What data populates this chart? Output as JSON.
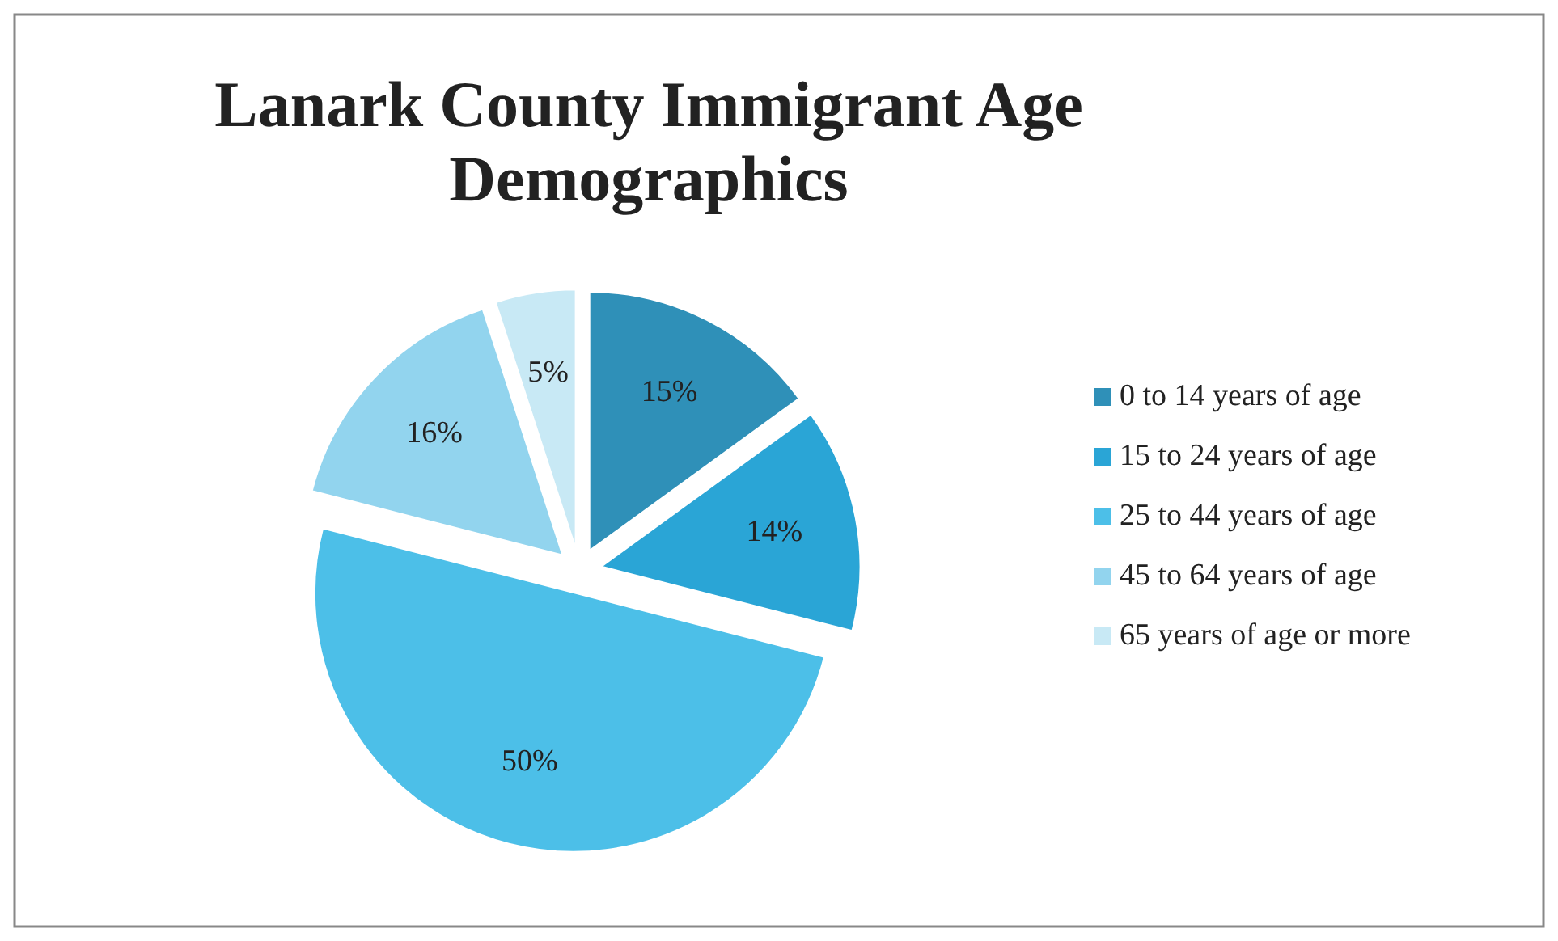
{
  "chart_data": {
    "type": "pie",
    "title": "Lanark County Immigrant Age Demographics",
    "categories": [
      "0 to 14 years of age",
      "15 to 24 years of age",
      "25 to 44 years of age",
      "45 to 64 years of age",
      "65 years of age or more"
    ],
    "values": [
      15,
      14,
      50,
      16,
      5
    ],
    "colors": [
      "#2f90b8",
      "#2aa5d6",
      "#4cbfe8",
      "#92d4ee",
      "#c8e9f5"
    ],
    "value_labels": [
      "15%",
      "14%",
      "50%",
      "16%",
      "5%"
    ],
    "legend": "right"
  }
}
